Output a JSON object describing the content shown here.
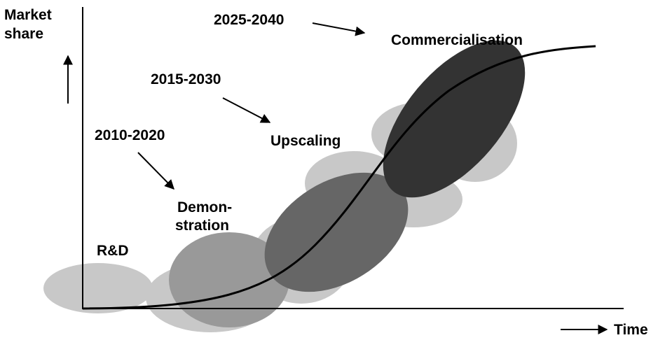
{
  "axes": {
    "y_label_lines": [
      "Market",
      "share"
    ],
    "x_label": "Time"
  },
  "stages": [
    {
      "label_lines": [
        "R&D"
      ]
    },
    {
      "label_lines": [
        "Demon-",
        "stration"
      ],
      "period": "2010-2020"
    },
    {
      "label_lines": [
        "Upscaling"
      ],
      "period": "2015-2030"
    },
    {
      "label_lines": [
        "Commercialisation"
      ],
      "period": "2025-2040"
    }
  ]
}
